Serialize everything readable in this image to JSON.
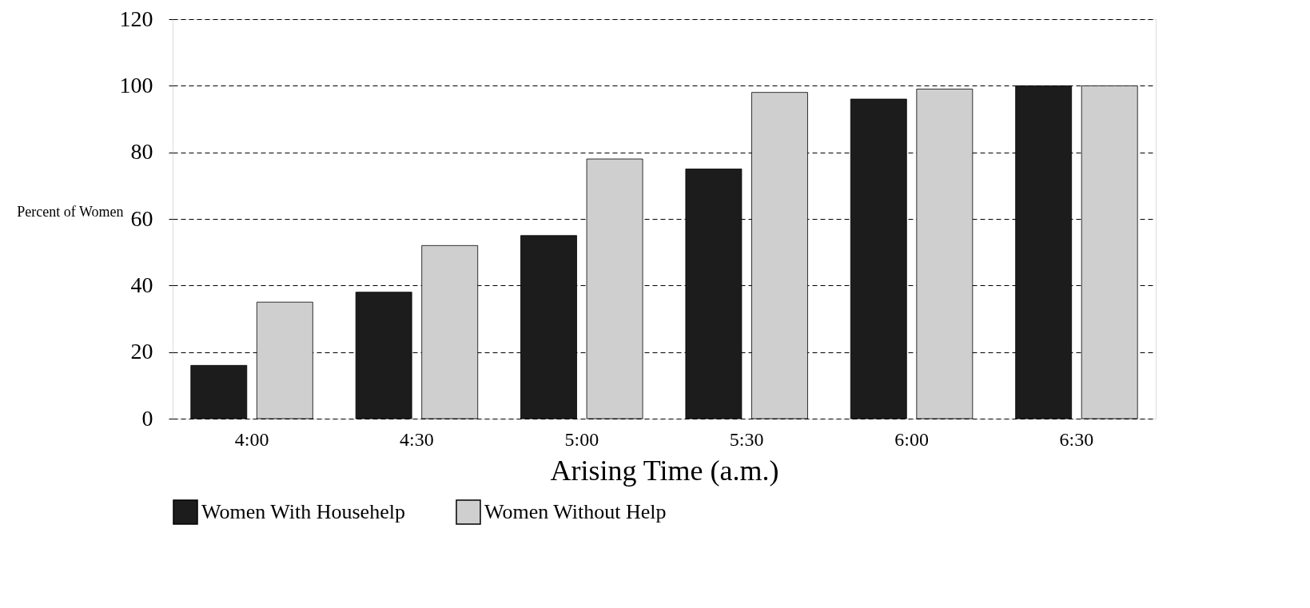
{
  "chart_data": {
    "type": "bar",
    "xlabel": "Arising Time (a.m.)",
    "ylabel": "Percent of Women",
    "categories": [
      "4:00",
      "4:30",
      "5:00",
      "5:30",
      "6:00",
      "6:30"
    ],
    "series": [
      {
        "name": "Women With Househelp",
        "color": "#1c1c1c",
        "values": [
          16,
          38,
          55,
          75,
          96,
          100
        ]
      },
      {
        "name": "Women Without Help",
        "color": "#cfcfcf",
        "values": [
          35,
          52,
          78,
          98,
          99,
          100
        ]
      }
    ],
    "ylim": [
      0,
      120
    ],
    "yticks": [
      0,
      20,
      40,
      60,
      80,
      100,
      120
    ],
    "grid": "y",
    "legend": "bottom"
  }
}
